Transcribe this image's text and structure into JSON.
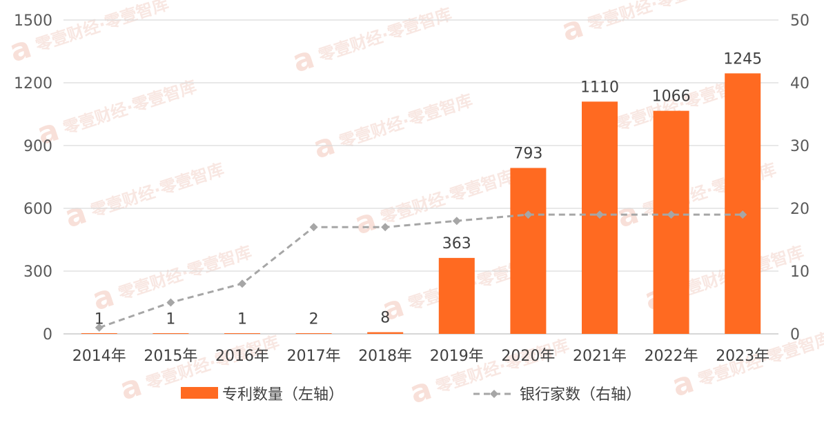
{
  "chart_data": {
    "type": "bar",
    "categories": [
      "2014年",
      "2015年",
      "2016年",
      "2017年",
      "2018年",
      "2019年",
      "2020年",
      "2021年",
      "2022年",
      "2023年"
    ],
    "series": [
      {
        "name": "专利数量（左轴）",
        "type": "bar",
        "axis": "left",
        "color": "#ff6a21",
        "values": [
          1,
          1,
          1,
          2,
          8,
          363,
          793,
          1110,
          1066,
          1245
        ],
        "labels": [
          "1",
          "1",
          "1",
          "2",
          "8",
          "363",
          "793",
          "1110",
          "1066",
          "1245"
        ]
      },
      {
        "name": "银行家数（右轴）",
        "type": "line",
        "axis": "right",
        "style": "dashed",
        "marker": "diamond",
        "color": "#a6a6a6",
        "values": [
          1,
          5,
          8,
          17,
          17,
          18,
          19,
          19,
          19,
          19
        ]
      }
    ],
    "y_left": {
      "ylim": [
        0,
        1500
      ],
      "ticks": [
        "0",
        "300",
        "600",
        "900",
        "1200",
        "1500"
      ],
      "values": [
        0,
        300,
        600,
        900,
        1200,
        1500
      ]
    },
    "y_right": {
      "ylim": [
        0,
        50
      ],
      "ticks": [
        "0",
        "10",
        "20",
        "30",
        "40",
        "50"
      ],
      "values": [
        0,
        10,
        20,
        30,
        40,
        50
      ]
    },
    "grid": true,
    "legend": "bottom"
  },
  "watermark": {
    "text": "零壹财经·零壹智库",
    "logo": "a"
  }
}
